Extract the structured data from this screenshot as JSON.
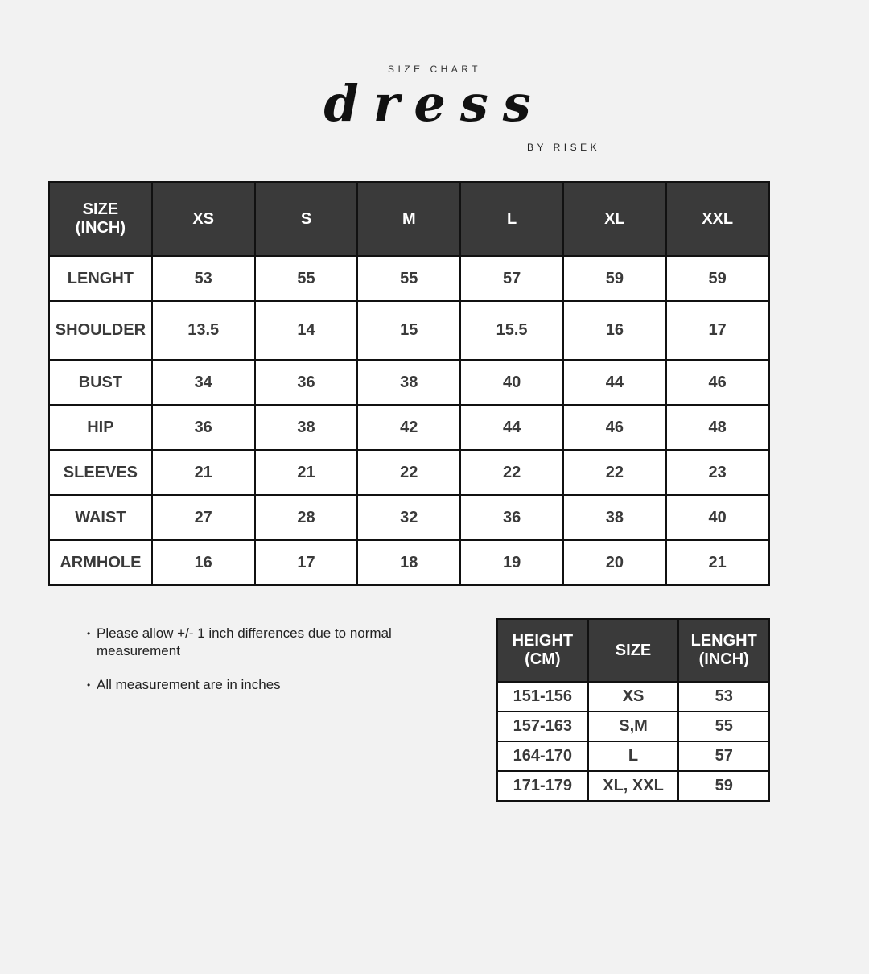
{
  "header": {
    "kicker": "SIZE CHART",
    "title": "dress",
    "byline": "BY RISEK"
  },
  "size_table": {
    "columns": [
      "SIZE\n(INCH)",
      "XS",
      "S",
      "M",
      "L",
      "XL",
      "XXL"
    ],
    "rows": [
      [
        "LENGHT",
        "53",
        "55",
        "55",
        "57",
        "59",
        "59"
      ],
      [
        "SHOULDER",
        "13.5",
        "14",
        "15",
        "15.5",
        "16",
        "17"
      ],
      [
        "BUST",
        "34",
        "36",
        "38",
        "40",
        "44",
        "46"
      ],
      [
        "HIP",
        "36",
        "38",
        "42",
        "44",
        "46",
        "48"
      ],
      [
        "SLEEVES",
        "21",
        "21",
        "22",
        "22",
        "22",
        "23"
      ],
      [
        "WAIST",
        "27",
        "28",
        "32",
        "36",
        "38",
        "40"
      ],
      [
        "ARMHOLE",
        "16",
        "17",
        "18",
        "19",
        "20",
        "21"
      ]
    ]
  },
  "height_table": {
    "columns": [
      "HEIGHT\n(CM)",
      "SIZE",
      "LENGHT\n(INCH)"
    ],
    "rows": [
      [
        "151-156",
        "XS",
        "53"
      ],
      [
        "157-163",
        "S,M",
        "55"
      ],
      [
        "164-170",
        "L",
        "57"
      ],
      [
        "171-179",
        "XL, XXL",
        "59"
      ]
    ]
  },
  "notes": [
    "Please allow +/- 1 inch differences due to normal measurement",
    "All measurement are in inches"
  ],
  "colors": {
    "header_bg": "#3a3a3a",
    "background": "#f2f2f2",
    "text": "#3a3a3a"
  }
}
